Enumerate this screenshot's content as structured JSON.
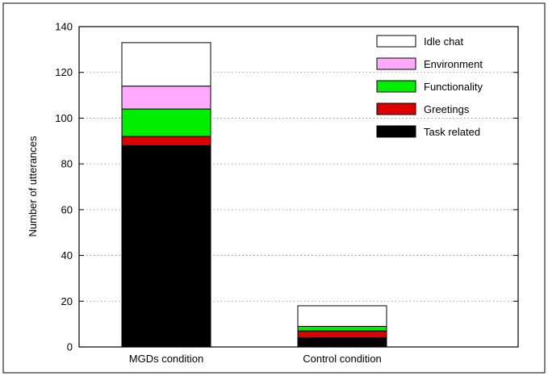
{
  "chart_data": {
    "type": "bar",
    "stacked": true,
    "categories": [
      "MGDs condition",
      "Control condition"
    ],
    "series": [
      {
        "name": "Task related",
        "values": [
          88,
          4
        ],
        "color": "#000000"
      },
      {
        "name": "Greetings",
        "values": [
          4,
          3
        ],
        "color": "#dd0000"
      },
      {
        "name": "Functionality",
        "values": [
          12,
          2
        ],
        "color": "#00ee00"
      },
      {
        "name": "Environment",
        "values": [
          10,
          0
        ],
        "color": "#ffaaff"
      },
      {
        "name": "Idle chat",
        "values": [
          19,
          9
        ],
        "color": "#ffffff"
      }
    ],
    "legend_order": [
      "Idle chat",
      "Environment",
      "Functionality",
      "Greetings",
      "Task related"
    ],
    "title": "",
    "xlabel": "",
    "ylabel": "Number of utterances",
    "ylim": [
      0,
      140
    ],
    "yticks": [
      0,
      20,
      40,
      60,
      80,
      100,
      120,
      140
    ],
    "grid": "horizontal dotted",
    "legend_position": "top-right"
  }
}
